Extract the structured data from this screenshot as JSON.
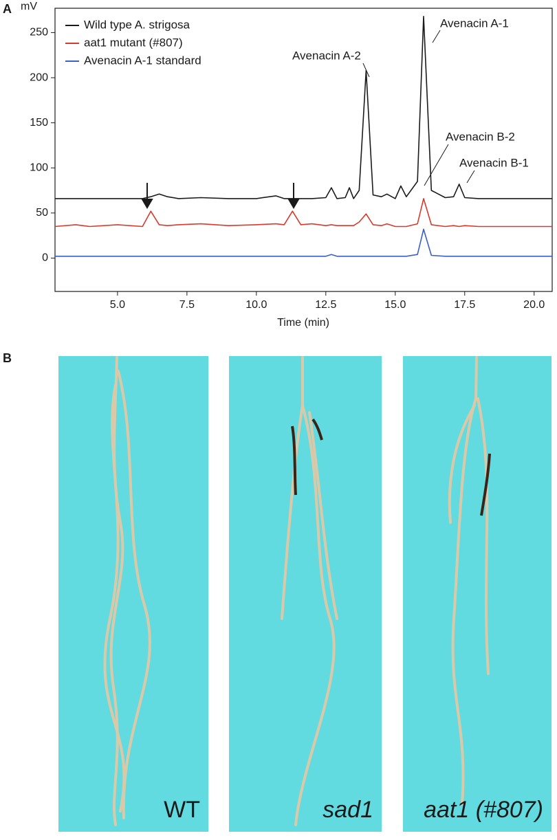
{
  "chart_data": {
    "type": "line",
    "panel_label": "A",
    "y_label": "mV",
    "x_label": "Time (min)",
    "xlim": [
      2.75,
      20.65
    ],
    "ylim": [
      -37,
      277
    ],
    "xticks": [
      {
        "value": 5,
        "label": "5.0"
      },
      {
        "value": 7.5,
        "label": "7.5"
      },
      {
        "value": 10,
        "label": "10.0"
      },
      {
        "value": 12.5,
        "label": "12.5"
      },
      {
        "value": 15,
        "label": "15.0"
      },
      {
        "value": 17.5,
        "label": "17.5"
      },
      {
        "value": 20,
        "label": "20.0"
      }
    ],
    "yticks": [
      0,
      50,
      100,
      150,
      200,
      250
    ],
    "x": [
      2.75,
      3.5,
      4.0,
      5.0,
      5.9,
      6.2,
      6.5,
      6.8,
      7.2,
      8.0,
      9.0,
      10.0,
      10.7,
      11.0,
      11.3,
      11.6,
      12.0,
      12.5,
      12.7,
      12.9,
      13.2,
      13.35,
      13.5,
      13.7,
      13.95,
      14.2,
      14.5,
      14.7,
      15.0,
      15.2,
      15.4,
      15.8,
      16.02,
      16.3,
      16.8,
      17.1,
      17.3,
      17.5,
      18.0,
      19.0,
      20.0,
      20.65
    ],
    "series": [
      {
        "name": "Wild type A. strigosa",
        "color": "#1a1a1a",
        "values": [
          66,
          66,
          66,
          66,
          66,
          68,
          71,
          68,
          66,
          67,
          66,
          66,
          69,
          66,
          66,
          66,
          66,
          67,
          78,
          66,
          67,
          78,
          66,
          75,
          208,
          70,
          68,
          71,
          66,
          80,
          68,
          85,
          268,
          75,
          67,
          68,
          82,
          67,
          66,
          66,
          66,
          66
        ]
      },
      {
        "name": "aat1 mutant (#807)",
        "color": "#d9392b",
        "values": [
          35,
          37,
          35,
          37,
          35,
          52,
          37,
          36,
          37,
          38,
          36,
          37,
          38,
          37,
          52,
          37,
          38,
          36,
          37,
          36,
          36,
          36,
          36,
          40,
          49,
          37,
          36,
          38,
          35,
          35,
          35,
          38,
          66,
          37,
          35,
          36,
          35,
          36,
          35,
          35,
          35,
          35
        ]
      },
      {
        "name": "Avenacin A-1 standard",
        "color": "#3a5fc8",
        "values": [
          2,
          2,
          2,
          2,
          2,
          2,
          2,
          2,
          2,
          2,
          2,
          2,
          2,
          2,
          2,
          2,
          2,
          2,
          4,
          2,
          2,
          2,
          2,
          2,
          2,
          2,
          2,
          2,
          2,
          2,
          2,
          4,
          32,
          3,
          2,
          2,
          2,
          2,
          2,
          2,
          2,
          2
        ]
      }
    ],
    "annotations": [
      "Avenacin A-1",
      "Avenacin A-2",
      "Avenacin B-2",
      "Avenacin B-1"
    ]
  },
  "photo_panel": {
    "panel_label": "B",
    "photos": [
      {
        "label": "WT"
      },
      {
        "label": "sad1"
      },
      {
        "label": "aat1 (#807)"
      }
    ]
  }
}
